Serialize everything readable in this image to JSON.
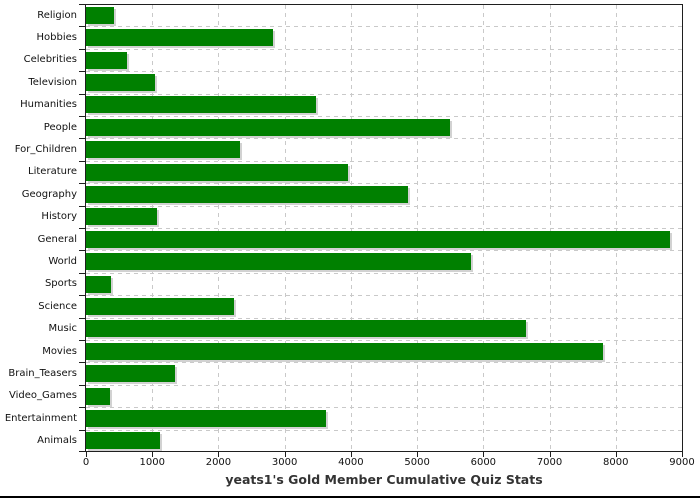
{
  "chart_data": {
    "type": "bar",
    "orientation": "horizontal",
    "title": "yeats1's Gold Member Cumulative Quiz Stats",
    "categories": [
      "Religion",
      "Hobbies",
      "Celebrities",
      "Television",
      "Humanities",
      "People",
      "For_Children",
      "Literature",
      "Geography",
      "History",
      "General",
      "World",
      "Sports",
      "Science",
      "Music",
      "Movies",
      "Brain_Teasers",
      "Video_Games",
      "Entertainment",
      "Animals"
    ],
    "values": [
      425,
      2830,
      620,
      1040,
      3470,
      5500,
      2330,
      3950,
      4860,
      1070,
      8820,
      5810,
      375,
      2230,
      6650,
      7800,
      1340,
      365,
      3620,
      1110
    ],
    "xlim": [
      0,
      9000
    ],
    "x_ticks": [
      0,
      1000,
      2000,
      3000,
      4000,
      5000,
      6000,
      7000,
      8000,
      9000
    ],
    "x_tick_labels": [
      "0",
      "1000",
      "2000",
      "3000",
      "4000",
      "5000",
      "6000",
      "7000",
      "8000",
      "9000"
    ],
    "grid": true,
    "legend": false,
    "bar_color": "#008000",
    "shadow_color": "#d2d2d2",
    "gridline_color": "#c9c9c9",
    "axis_color": "#1f1f1f",
    "title_color": "#333333"
  }
}
